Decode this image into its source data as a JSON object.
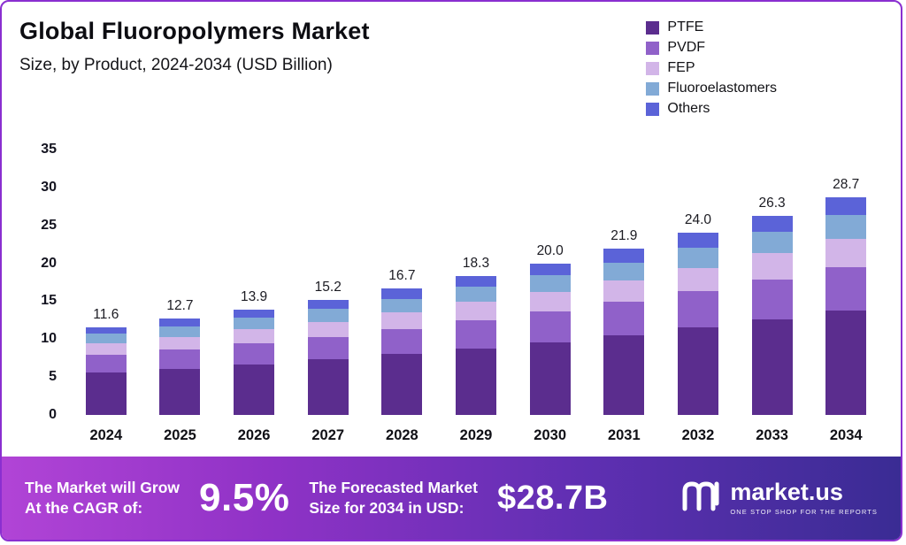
{
  "header": {
    "title": "Global Fluoropolymers Market",
    "subtitle": "Size, by Product, 2024-2034 (USD Billion)"
  },
  "colors": {
    "ptfe": "#5b2d8e",
    "pvdf": "#9061c9",
    "fep": "#d2b5e8",
    "fluoroelastomers": "#82aad6",
    "others": "#5b63d8",
    "frame_border": "#8a2fd0",
    "banner_gradient_left": "#b144d6",
    "banner_gradient_right": "#3a2c94"
  },
  "chart_data": {
    "type": "bar",
    "stacked": true,
    "title": "Global Fluoropolymers Market Size, by Product, 2024-2034 (USD Billion)",
    "xlabel": "",
    "ylabel": "USD Billion",
    "ylim": [
      0,
      35
    ],
    "ytick_step": 5,
    "grid": false,
    "legend_position": "top-right",
    "categories": [
      "2024",
      "2025",
      "2026",
      "2027",
      "2028",
      "2029",
      "2030",
      "2031",
      "2032",
      "2033",
      "2034"
    ],
    "totals": [
      "11.6",
      "12.7",
      "13.9",
      "15.2",
      "16.7",
      "18.3",
      "20.0",
      "21.9",
      "24.0",
      "26.3",
      "28.7"
    ],
    "series": [
      {
        "name": "PTFE",
        "color": "#5b2d8e",
        "values": [
          5.6,
          6.1,
          6.7,
          7.3,
          8.0,
          8.8,
          9.6,
          10.5,
          11.5,
          12.6,
          13.8
        ]
      },
      {
        "name": "PVDF",
        "color": "#9061c9",
        "values": [
          2.3,
          2.5,
          2.8,
          3.0,
          3.3,
          3.7,
          4.0,
          4.4,
          4.8,
          5.3,
          5.7
        ]
      },
      {
        "name": "FEP",
        "color": "#d2b5e8",
        "values": [
          1.5,
          1.7,
          1.8,
          2.0,
          2.2,
          2.4,
          2.6,
          2.8,
          3.1,
          3.4,
          3.7
        ]
      },
      {
        "name": "Fluoroelastomers",
        "color": "#82aad6",
        "values": [
          1.3,
          1.4,
          1.5,
          1.7,
          1.8,
          2.0,
          2.2,
          2.4,
          2.6,
          2.9,
          3.2
        ]
      },
      {
        "name": "Others",
        "color": "#5b63d8",
        "values": [
          0.9,
          1.0,
          1.1,
          1.2,
          1.4,
          1.4,
          1.6,
          1.8,
          2.0,
          2.1,
          2.3
        ]
      }
    ]
  },
  "banner": {
    "cagr_label": [
      "The Market will Grow",
      "At the CAGR of:"
    ],
    "cagr_value": "9.5%",
    "forecast_label": [
      "The Forecasted Market",
      "Size for 2034 in USD:"
    ],
    "forecast_value": "$28.7B",
    "brand": "market.us",
    "tagline": "ONE STOP SHOP FOR THE REPORTS"
  }
}
